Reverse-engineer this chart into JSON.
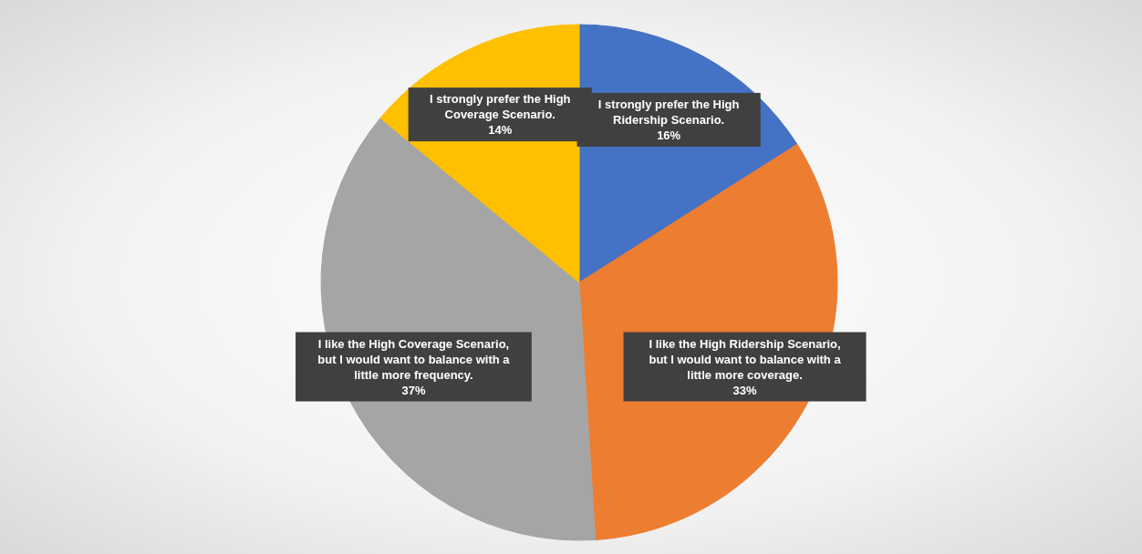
{
  "chart_data": {
    "type": "pie",
    "categories": [
      "I strongly prefer the High Ridership Scenario.",
      "I like the High Ridership Scenario, but I would want to balance with a little more coverage.",
      "I like the High Coverage Scenario, but I would want to balance with a little more frequency.",
      "I strongly prefer the High Coverage Scenario."
    ],
    "values": [
      16,
      33,
      37,
      14
    ],
    "value_labels": [
      "16%",
      "33%",
      "37%",
      "14%"
    ],
    "colors": [
      "#4472c4",
      "#ed7d31",
      "#a5a5a5",
      "#ffc000"
    ],
    "legend": false
  }
}
